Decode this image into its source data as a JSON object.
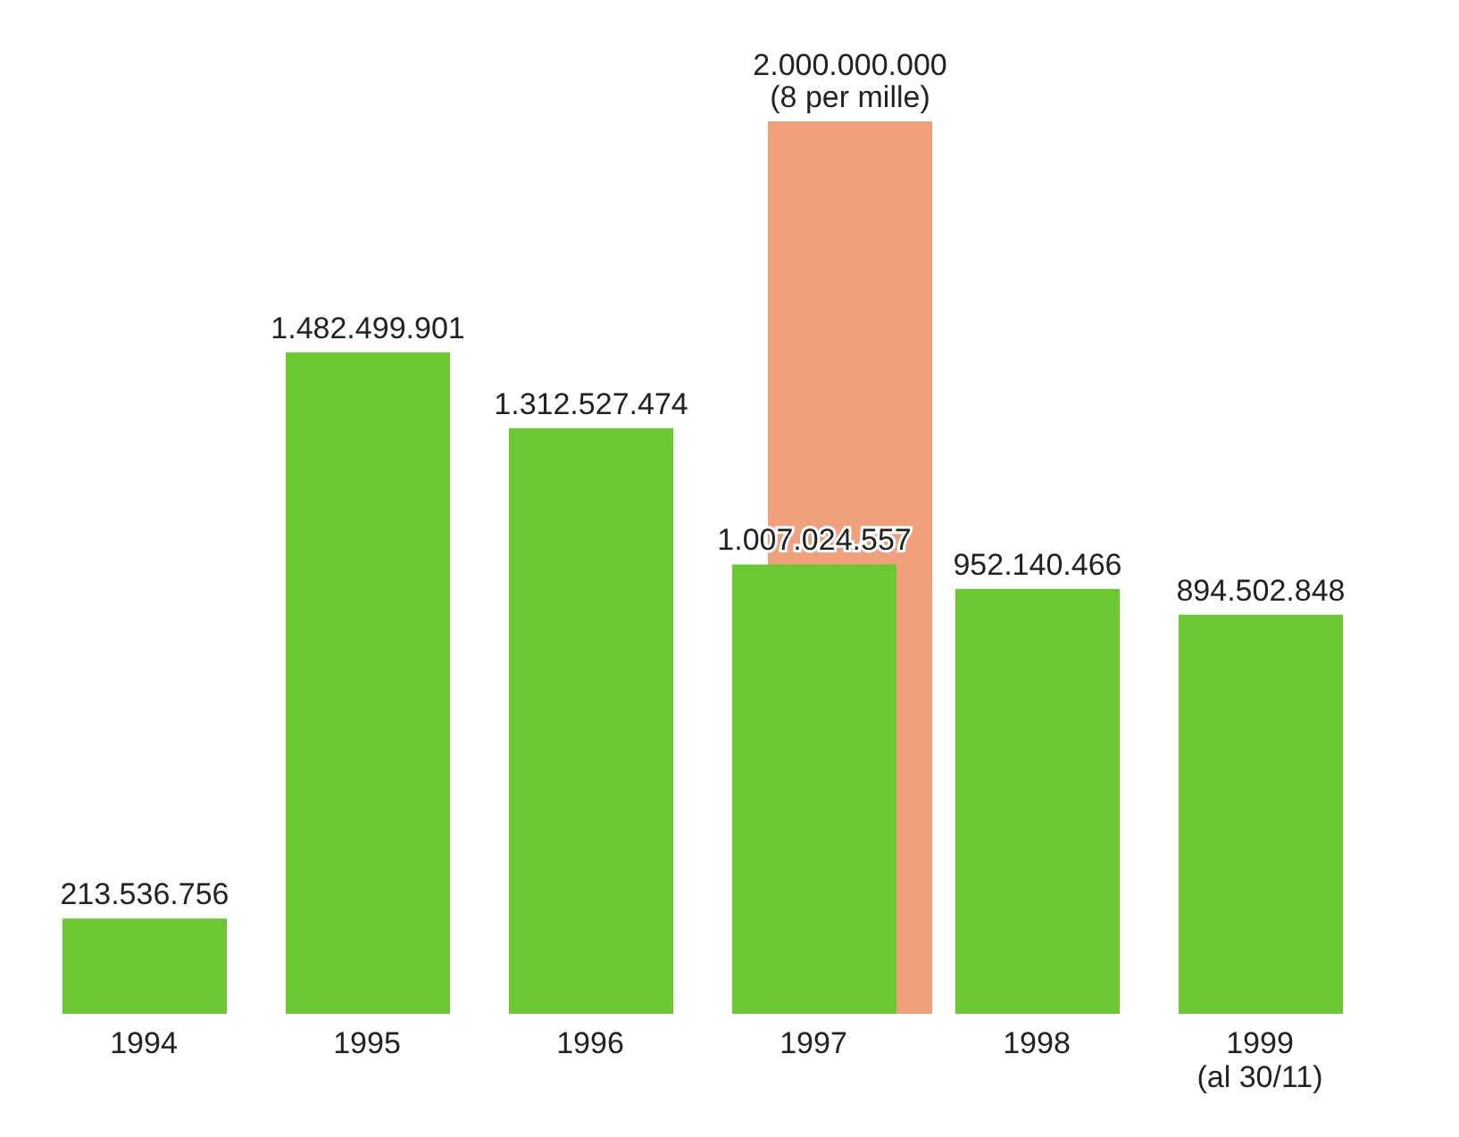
{
  "chart_data": {
    "type": "bar",
    "categories": [
      "1994",
      "1995",
      "1996",
      "1997",
      "1998",
      "1999\n(al 30/11)"
    ],
    "series": [
      {
        "color": "#f0a07a",
        "values": [
          null,
          null,
          null,
          2000000000,
          null,
          null
        ],
        "value_labels": [
          null,
          null,
          null,
          "2.000.000.000\n(8 per mille)",
          null,
          null
        ]
      },
      {
        "color": "#6cc832",
        "values": [
          213536756,
          1482499901,
          1312527474,
          1007024557,
          952140466,
          894502848
        ],
        "value_labels": [
          "213.536.756",
          "1.482.499.901",
          "1.312.527.474",
          "1.007.024.557",
          "952.140.466",
          "894.502.848"
        ]
      }
    ]
  }
}
